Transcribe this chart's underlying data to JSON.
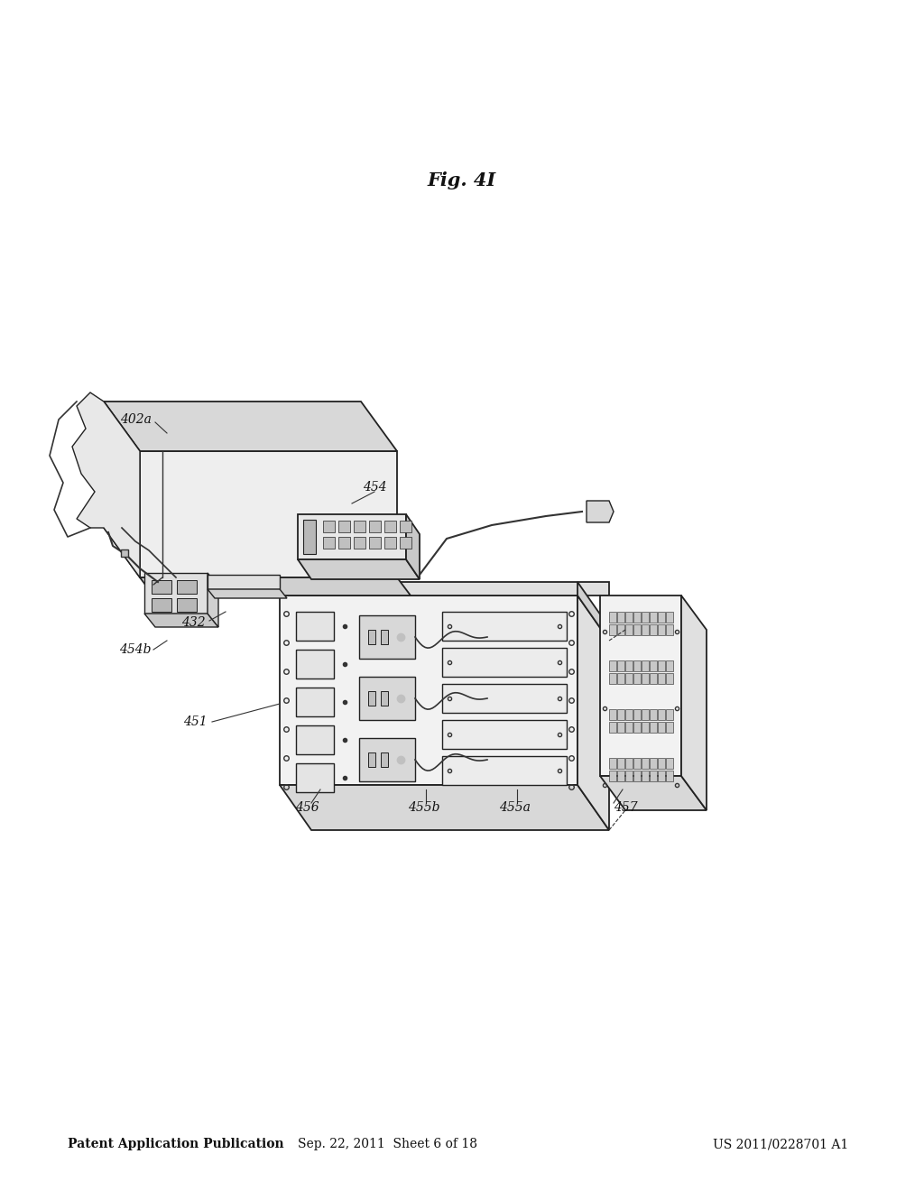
{
  "background_color": "#ffffff",
  "header_left": "Patent Application Publication",
  "header_center": "Sep. 22, 2011  Sheet 6 of 18",
  "header_right": "US 2011/0228701 A1",
  "fig_label": "Fig. 4I",
  "header_fontsize": 10,
  "label_fontsize": 10,
  "fig_label_fontsize": 15,
  "gray": "#333333",
  "light_gray": "#e8e8e8",
  "mid_gray": "#d0d0d0",
  "dark_gray": "#aaaaaa"
}
